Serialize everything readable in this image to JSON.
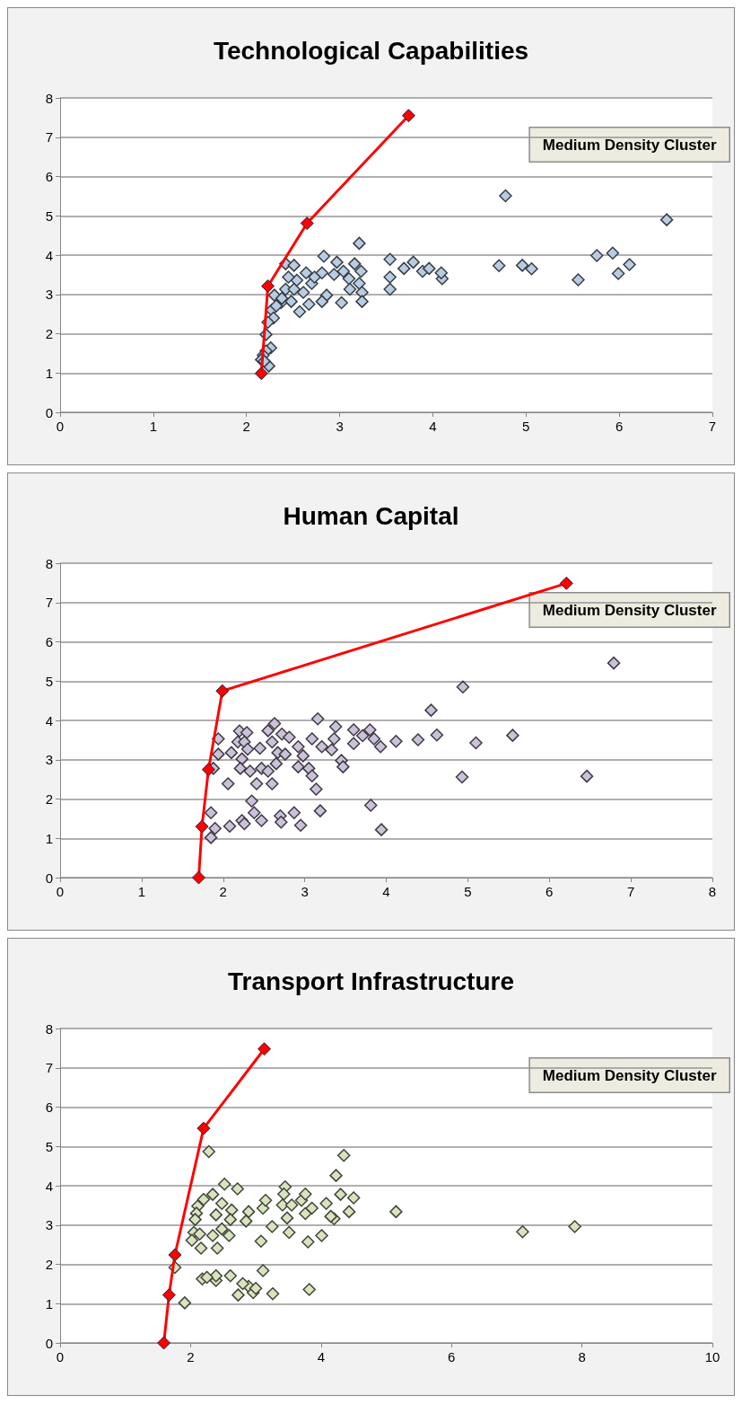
{
  "chart_data": [
    {
      "type": "scatter",
      "title": "Technological Capabilities",
      "annotations": [
        "Medium Density Cluster"
      ],
      "xlim": [
        0,
        7
      ],
      "xticks": [
        0,
        1,
        2,
        3,
        4,
        5,
        6,
        7
      ],
      "ylim": [
        0,
        8
      ],
      "yticks": [
        0,
        1,
        2,
        3,
        4,
        5,
        6,
        7,
        8
      ],
      "grid": "y",
      "marker": "diamond",
      "series": [
        {
          "type": "scatter",
          "color": "#b8cce4",
          "x": [
            3.21,
            2.42,
            2.51,
            2.83,
            2.97,
            3.16,
            3.23,
            2.64,
            2.54,
            2.45,
            2.7,
            2.73,
            2.81,
            2.94,
            3.04,
            3.1,
            3.21,
            3.11,
            3.24,
            3.24,
            3.02,
            2.86,
            2.81,
            2.67,
            2.57,
            2.48,
            2.37,
            2.42,
            2.51,
            2.61,
            2.3,
            2.27,
            2.29,
            2.23,
            2.21,
            2.26,
            2.21,
            2.18,
            2.16,
            2.24,
            2.19,
            2.32,
            2.38,
            3.54,
            3.54,
            3.54,
            3.69,
            3.79,
            3.89,
            3.96,
            4.1,
            4.09,
            4.78,
            4.71,
            4.96,
            5.06,
            5.56,
            5.76,
            5.93,
            5.99,
            6.11,
            6.51
          ],
          "values": [
            4.3,
            3.78,
            3.74,
            3.97,
            3.82,
            3.78,
            3.59,
            3.55,
            3.36,
            3.44,
            3.28,
            3.44,
            3.55,
            3.51,
            3.59,
            3.4,
            3.28,
            3.13,
            3.05,
            2.82,
            2.79,
            2.98,
            2.82,
            2.75,
            2.56,
            2.82,
            2.79,
            3.13,
            3.13,
            3.05,
            2.98,
            2.6,
            2.4,
            2.29,
            1.98,
            1.64,
            1.56,
            1.45,
            1.34,
            1.18,
            1.3,
            2.71,
            2.9,
            3.89,
            3.44,
            3.13,
            3.66,
            3.82,
            3.59,
            3.66,
            3.4,
            3.55,
            5.51,
            3.73,
            3.74,
            3.65,
            3.37,
            3.99,
            4.05,
            3.53,
            3.76,
            4.9
          ]
        },
        {
          "type": "line",
          "color": "#ff0000",
          "x": [
            2.16,
            2.23,
            2.65,
            3.74
          ],
          "values": [
            0.99,
            3.21,
            4.81,
            7.55
          ]
        }
      ]
    },
    {
      "type": "scatter",
      "title": "Human Capital",
      "annotations": [
        "Medium Density Cluster"
      ],
      "xlim": [
        0,
        8
      ],
      "xticks": [
        0,
        1,
        2,
        3,
        4,
        5,
        6,
        7,
        8
      ],
      "ylim": [
        0,
        8
      ],
      "yticks": [
        0,
        1,
        2,
        3,
        4,
        5,
        6,
        7,
        8
      ],
      "grid": "y",
      "marker": "diamond",
      "series": [
        {
          "type": "scatter",
          "color": "#ccc1da",
          "x": [
            1.94,
            1.94,
            1.88,
            1.85,
            1.9,
            1.85,
            2.06,
            2.1,
            2.2,
            2.29,
            2.18,
            2.26,
            2.3,
            2.23,
            2.21,
            2.33,
            2.41,
            2.45,
            2.47,
            2.55,
            2.6,
            2.55,
            2.63,
            2.6,
            2.67,
            2.65,
            2.76,
            2.72,
            2.81,
            2.92,
            2.98,
            2.92,
            3.05,
            3.09,
            3.14,
            3.16,
            3.09,
            3.21,
            3.33,
            3.38,
            3.36,
            3.45,
            3.47,
            3.6,
            3.6,
            3.71,
            3.8,
            3.85,
            3.93,
            4.12,
            4.39,
            2.35,
            2.38,
            2.23,
            2.08,
            2.26,
            2.47,
            2.7,
            2.71,
            2.87,
            2.95,
            3.19,
            3.81,
            3.94,
            4.55,
            4.62,
            4.94,
            5.1,
            5.55,
            4.93,
            6.46,
            6.79
          ],
          "values": [
            3.53,
            3.14,
            2.78,
            1.65,
            1.25,
            1.02,
            2.39,
            3.18,
            3.73,
            3.69,
            3.45,
            3.45,
            3.27,
            3.02,
            2.78,
            2.71,
            2.39,
            3.29,
            2.78,
            2.71,
            2.39,
            3.74,
            3.92,
            3.45,
            3.18,
            2.9,
            3.14,
            3.65,
            3.57,
            3.33,
            3.1,
            2.82,
            2.78,
            2.59,
            2.25,
            4.04,
            3.53,
            3.33,
            3.25,
            3.84,
            3.53,
            2.98,
            2.82,
            3.76,
            3.41,
            3.61,
            3.76,
            3.53,
            3.33,
            3.47,
            3.51,
            1.95,
            1.65,
            1.45,
            1.31,
            1.37,
            1.45,
            1.57,
            1.41,
            1.65,
            1.33,
            1.7,
            1.84,
            1.22,
            4.26,
            3.63,
            4.85,
            3.43,
            3.62,
            2.56,
            2.58,
            5.46
          ]
        },
        {
          "type": "line",
          "color": "#ff0000",
          "x": [
            1.7,
            1.74,
            1.82,
            1.99,
            6.21
          ],
          "values": [
            0,
            1.3,
            2.75,
            4.75,
            7.49
          ]
        }
      ]
    },
    {
      "type": "scatter",
      "title": "Transport Infrastructure",
      "annotations": [
        "Medium Density Cluster"
      ],
      "xlim": [
        0,
        10
      ],
      "xticks": [
        0,
        2,
        4,
        6,
        8,
        10
      ],
      "ylim": [
        0,
        8
      ],
      "yticks": [
        0,
        1,
        2,
        3,
        4,
        5,
        6,
        7,
        8
      ],
      "grid": "y",
      "marker": "diamond",
      "series": [
        {
          "type": "scatter",
          "color": "#d7e4bd",
          "x": [
            2.28,
            1.76,
            1.91,
            4.35,
            4.23,
            4.3,
            4.5,
            4.43,
            4.2,
            4.08,
            5.15,
            2.52,
            2.72,
            2.34,
            2.2,
            2.11,
            2.09,
            2.07,
            2.05,
            2.02,
            2.14,
            2.16,
            2.41,
            2.34,
            2.59,
            2.48,
            2.39,
            2.48,
            2.63,
            2.61,
            2.89,
            2.85,
            3.11,
            3.15,
            3.25,
            3.08,
            3.45,
            3.43,
            3.41,
            3.55,
            3.48,
            3.51,
            3.7,
            3.76,
            3.76,
            3.86,
            3.8,
            4.01,
            4.15,
            2.18,
            2.39,
            2.61,
            2.73,
            2.89,
            2.96,
            3.0,
            3.11,
            3.26,
            3.82,
            2.8,
            2.39,
            2.25,
            7.09,
            7.89
          ],
          "values": [
            4.87,
            1.92,
            1.02,
            4.77,
            4.26,
            3.78,
            3.69,
            3.34,
            3.16,
            3.55,
            3.34,
            4.04,
            3.92,
            3.78,
            3.65,
            3.48,
            3.3,
            3.14,
            2.81,
            2.61,
            2.77,
            2.41,
            2.41,
            2.73,
            2.73,
            2.9,
            3.26,
            3.55,
            3.38,
            3.14,
            3.34,
            3.1,
            3.43,
            3.63,
            2.96,
            2.59,
            3.97,
            3.79,
            3.51,
            3.51,
            3.18,
            2.81,
            3.63,
            3.79,
            3.29,
            3.43,
            2.57,
            2.73,
            3.22,
            1.63,
            1.59,
            1.71,
            1.22,
            1.44,
            1.28,
            1.39,
            1.84,
            1.25,
            1.36,
            1.51,
            1.71,
            1.67,
            2.83,
            2.96
          ]
        },
        {
          "type": "line",
          "color": "#ff0000",
          "x": [
            1.59,
            1.67,
            1.76,
            2.2,
            3.13
          ],
          "values": [
            0,
            1.22,
            2.24,
            5.46,
            7.48
          ]
        }
      ]
    }
  ]
}
